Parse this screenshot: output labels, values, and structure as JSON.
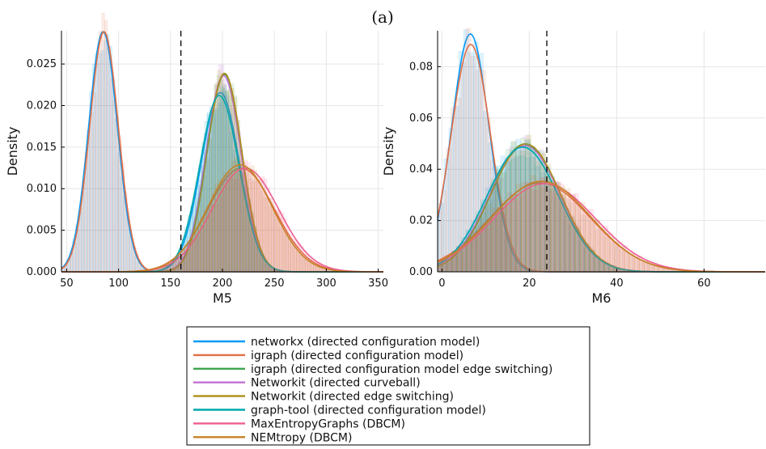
{
  "figure_title": "(a)",
  "colors": {
    "networkx": "#009AFA",
    "igraph": "#E26F46",
    "igraph_es": "#3EA44E",
    "networkit_cb": "#C271D2",
    "networkit_es": "#AC8E18",
    "graphtool": "#00A9AD",
    "maxent": "#ED5D92",
    "nemtropy": "#C68225",
    "observed": "#000000"
  },
  "legend": {
    "items": [
      {
        "label": "networkx (directed configuration model)",
        "color_key": "networkx"
      },
      {
        "label": "igraph (directed configuration model)",
        "color_key": "igraph"
      },
      {
        "label": "igraph (directed configuration model edge switching)",
        "color_key": "igraph_es"
      },
      {
        "label": "Networkit (directed curveball)",
        "color_key": "networkit_cb"
      },
      {
        "label": "Networkit (directed edge switching)",
        "color_key": "networkit_es"
      },
      {
        "label": "graph-tool (directed configuration model)",
        "color_key": "graphtool"
      },
      {
        "label": "MaxEntropyGraphs (DBCM)",
        "color_key": "maxent"
      },
      {
        "label": "NEMtropy (DBCM)",
        "color_key": "nemtropy"
      }
    ]
  },
  "chart_data": [
    {
      "type": "area",
      "xlabel": "M5",
      "ylabel": "Density",
      "xlim": [
        45,
        355
      ],
      "ylim": [
        0,
        0.029
      ],
      "xticks": [
        50,
        100,
        150,
        200,
        250,
        300,
        350
      ],
      "yticks": [
        0.0,
        0.005,
        0.01,
        0.015,
        0.02,
        0.025
      ],
      "ytick_labels": [
        "0.000",
        "0.005",
        "0.010",
        "0.015",
        "0.020",
        "0.025"
      ],
      "grid": true,
      "observed_value": 160,
      "series": [
        {
          "color_key": "networkx",
          "components": [
            {
              "mean": 85,
              "sd": 13.8,
              "weight": 1.0
            }
          ],
          "component2": {
            "mean": 198,
            "sd": 18.5,
            "weight": 1.0
          }
        },
        {
          "color_key": "igraph",
          "components": [
            {
              "mean": 86,
              "sd": 13.8,
              "weight": 1.0
            }
          ],
          "component2": {
            "mean": 218,
            "sd": 32,
            "weight": 1.0
          }
        },
        {
          "color_key": "igraph_es",
          "components": [],
          "component2": {
            "mean": 202,
            "sd": 16.8,
            "weight": 1.0
          }
        },
        {
          "color_key": "networkit_cb",
          "components": [],
          "component2": {
            "mean": 201,
            "sd": 16.9,
            "weight": 1.0
          }
        },
        {
          "color_key": "networkit_es",
          "components": [],
          "component2": {
            "mean": 202,
            "sd": 16.7,
            "weight": 1.0
          }
        },
        {
          "color_key": "graphtool",
          "components": [],
          "component2": {
            "mean": 197,
            "sd": 18.8,
            "weight": 1.0
          }
        },
        {
          "color_key": "maxent",
          "components": [],
          "component2": {
            "mean": 222,
            "sd": 32,
            "weight": 1.0
          }
        },
        {
          "color_key": "nemtropy",
          "components": [],
          "component2": {
            "mean": 217,
            "sd": 31,
            "weight": 1.0
          }
        }
      ]
    },
    {
      "type": "area",
      "xlabel": "M6",
      "ylabel": "Density",
      "xlim": [
        -1,
        74
      ],
      "ylim": [
        0,
        0.094
      ],
      "xticks": [
        0,
        20,
        40,
        60
      ],
      "yticks": [
        0.0,
        0.02,
        0.04,
        0.06,
        0.08
      ],
      "ytick_labels": [
        "0.00",
        "0.02",
        "0.04",
        "0.06",
        "0.08"
      ],
      "grid": true,
      "observed_value": 24,
      "series": [
        {
          "color_key": "networkx",
          "components": [
            {
              "mean": 6.5,
              "sd": 4.3,
              "weight": 1.0
            }
          ],
          "component2": {
            "mean": 18.5,
            "sd": 8.2,
            "weight": 1.0
          }
        },
        {
          "color_key": "igraph",
          "components": [
            {
              "mean": 6.6,
              "sd": 4.5,
              "weight": 1.0
            }
          ],
          "component2": {
            "mean": 22.5,
            "sd": 11.5,
            "weight": 1.0
          }
        },
        {
          "color_key": "igraph_es",
          "components": [],
          "component2": {
            "mean": 19,
            "sd": 8.0,
            "weight": 1.0
          }
        },
        {
          "color_key": "networkit_cb",
          "components": [],
          "component2": {
            "mean": 19,
            "sd": 8.1,
            "weight": 1.0
          }
        },
        {
          "color_key": "networkit_es",
          "components": [],
          "component2": {
            "mean": 19.2,
            "sd": 8.0,
            "weight": 1.0
          }
        },
        {
          "color_key": "graphtool",
          "components": [],
          "component2": {
            "mean": 18.5,
            "sd": 8.2,
            "weight": 1.0
          }
        },
        {
          "color_key": "maxent",
          "components": [],
          "component2": {
            "mean": 23.5,
            "sd": 11.6,
            "weight": 1.0
          }
        },
        {
          "color_key": "nemtropy",
          "components": [],
          "component2": {
            "mean": 22.8,
            "sd": 11.3,
            "weight": 1.0
          }
        }
      ]
    }
  ]
}
